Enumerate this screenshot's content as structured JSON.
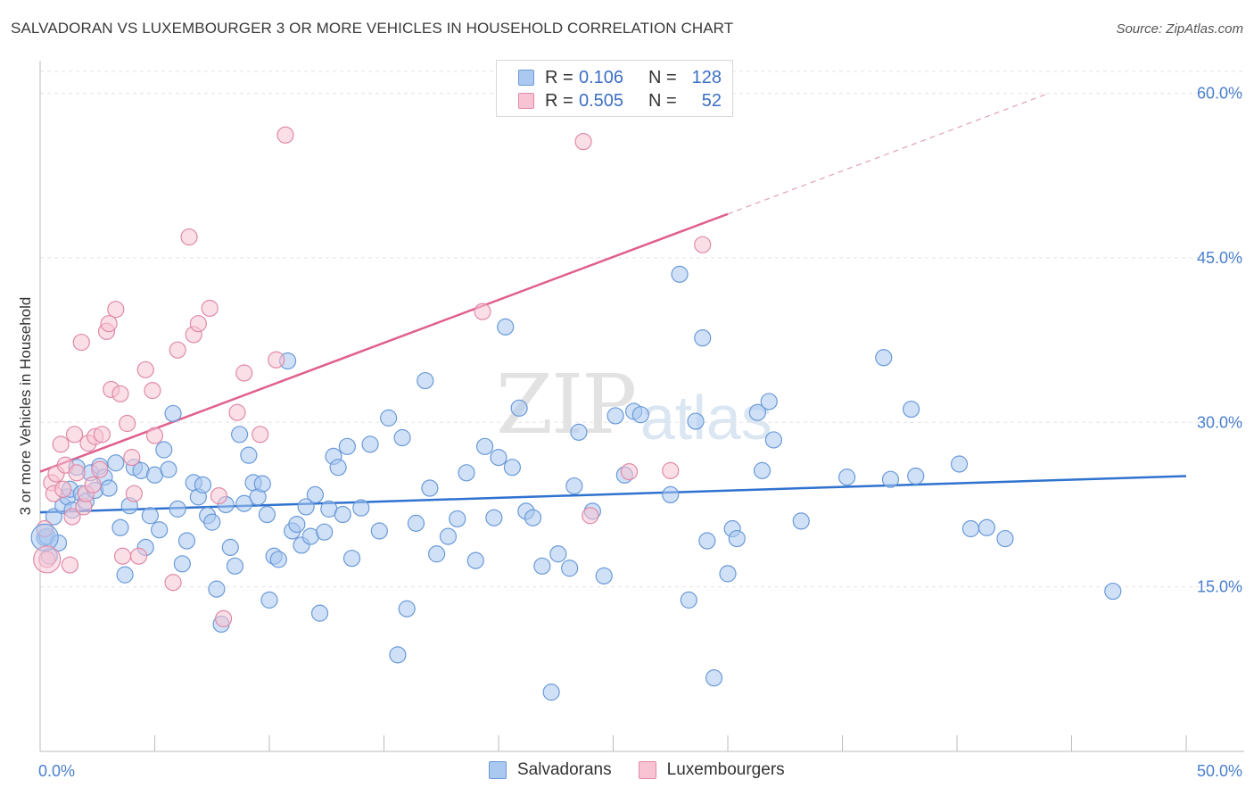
{
  "title": "SALVADORAN VS LUXEMBOURGER 3 OR MORE VEHICLES IN HOUSEHOLD CORRELATION CHART",
  "source": "Source: ZipAtlas.com",
  "watermark": {
    "zip": "ZIP",
    "atlas": "atlas"
  },
  "legend": {
    "rows": [
      {
        "r_label": "R =",
        "r_value": "0.106",
        "n_label": "N =",
        "n_value": "128",
        "color": "#aac8f0",
        "border": "#6a9ad8"
      },
      {
        "r_label": "R =",
        "r_value": "0.505",
        "n_label": "N =",
        "n_value": "52",
        "color": "#f8c4d4",
        "border": "#e08aa6"
      }
    ]
  },
  "bottom_legend": [
    {
      "label": "Salvadorans",
      "color": "#aac8f0",
      "border": "#6a9ad8"
    },
    {
      "label": "Luxembourgers",
      "color": "#f8c4d4",
      "border": "#e08aa6"
    }
  ],
  "chart_data": {
    "type": "scatter",
    "ylabel": "3 or more Vehicles in Household",
    "xlim": [
      0,
      50
    ],
    "ylim": [
      0,
      62
    ],
    "x_tick_labels": [
      "0.0%",
      "50.0%"
    ],
    "y_ticks": [
      15,
      30,
      45,
      60
    ],
    "y_tick_labels": [
      "15.0%",
      "30.0%",
      "45.0%",
      "60.0%"
    ],
    "grid": true,
    "series": [
      {
        "name": "Salvadorans",
        "color": "#6a9ad8",
        "fill": "#aac8f0",
        "trend": {
          "x0": 0,
          "y0": 21.8,
          "x1": 50,
          "y1": 25.1
        },
        "points": [
          [
            0.2,
            19.5
          ],
          [
            0.3,
            19.6
          ],
          [
            0.4,
            17.8
          ],
          [
            0.6,
            21.4
          ],
          [
            0.8,
            19.0
          ],
          [
            1.0,
            22.4
          ],
          [
            1.2,
            23.2
          ],
          [
            1.3,
            23.9
          ],
          [
            1.4,
            22.0
          ],
          [
            1.6,
            25.9
          ],
          [
            1.8,
            23.5
          ],
          [
            2.0,
            22.8
          ],
          [
            2.2,
            25.4
          ],
          [
            2.4,
            23.8
          ],
          [
            2.6,
            26.0
          ],
          [
            2.8,
            25.0
          ],
          [
            3.0,
            24.0
          ],
          [
            3.3,
            26.3
          ],
          [
            3.5,
            20.4
          ],
          [
            3.7,
            16.1
          ],
          [
            3.9,
            22.4
          ],
          [
            4.1,
            25.9
          ],
          [
            4.4,
            25.6
          ],
          [
            4.6,
            18.6
          ],
          [
            4.8,
            21.5
          ],
          [
            5.0,
            25.2
          ],
          [
            5.2,
            20.2
          ],
          [
            5.4,
            27.5
          ],
          [
            5.6,
            25.7
          ],
          [
            5.8,
            30.8
          ],
          [
            6.0,
            22.1
          ],
          [
            6.2,
            17.1
          ],
          [
            6.4,
            19.2
          ],
          [
            6.7,
            24.5
          ],
          [
            6.9,
            23.2
          ],
          [
            7.1,
            24.3
          ],
          [
            7.3,
            21.5
          ],
          [
            7.5,
            20.9
          ],
          [
            7.7,
            14.8
          ],
          [
            7.9,
            11.6
          ],
          [
            8.1,
            22.5
          ],
          [
            8.3,
            18.6
          ],
          [
            8.5,
            16.9
          ],
          [
            8.7,
            28.9
          ],
          [
            8.9,
            22.6
          ],
          [
            9.1,
            27.0
          ],
          [
            9.3,
            24.5
          ],
          [
            9.5,
            23.2
          ],
          [
            9.7,
            24.4
          ],
          [
            9.9,
            21.6
          ],
          [
            10.0,
            13.8
          ],
          [
            10.2,
            17.8
          ],
          [
            10.4,
            17.5
          ],
          [
            10.8,
            35.6
          ],
          [
            11.0,
            20.1
          ],
          [
            11.2,
            20.7
          ],
          [
            11.4,
            18.8
          ],
          [
            11.6,
            22.3
          ],
          [
            11.8,
            19.6
          ],
          [
            12.0,
            23.4
          ],
          [
            12.2,
            12.6
          ],
          [
            12.4,
            20.0
          ],
          [
            12.6,
            22.1
          ],
          [
            12.8,
            26.9
          ],
          [
            13.0,
            25.9
          ],
          [
            13.2,
            21.6
          ],
          [
            13.4,
            27.8
          ],
          [
            13.6,
            17.6
          ],
          [
            14.0,
            22.2
          ],
          [
            14.4,
            28.0
          ],
          [
            14.8,
            20.1
          ],
          [
            15.2,
            30.4
          ],
          [
            15.6,
            8.8
          ],
          [
            15.8,
            28.6
          ],
          [
            16.0,
            13.0
          ],
          [
            16.4,
            20.8
          ],
          [
            16.8,
            33.8
          ],
          [
            17.0,
            24.0
          ],
          [
            17.3,
            18.0
          ],
          [
            17.8,
            19.6
          ],
          [
            18.2,
            21.2
          ],
          [
            18.6,
            25.4
          ],
          [
            19.0,
            17.4
          ],
          [
            19.4,
            27.8
          ],
          [
            19.8,
            21.3
          ],
          [
            20.0,
            26.8
          ],
          [
            20.3,
            38.7
          ],
          [
            20.6,
            25.9
          ],
          [
            20.9,
            31.3
          ],
          [
            21.2,
            21.9
          ],
          [
            21.5,
            21.3
          ],
          [
            21.9,
            16.9
          ],
          [
            22.3,
            5.4
          ],
          [
            22.6,
            18.0
          ],
          [
            23.1,
            16.7
          ],
          [
            23.3,
            24.2
          ],
          [
            23.5,
            29.1
          ],
          [
            24.1,
            21.9
          ],
          [
            24.6,
            16.0
          ],
          [
            25.1,
            30.6
          ],
          [
            25.5,
            25.2
          ],
          [
            25.9,
            31.0
          ],
          [
            26.2,
            30.7
          ],
          [
            27.5,
            23.4
          ],
          [
            27.9,
            43.5
          ],
          [
            28.3,
            13.8
          ],
          [
            28.6,
            30.1
          ],
          [
            28.9,
            37.7
          ],
          [
            29.1,
            19.2
          ],
          [
            29.4,
            6.7
          ],
          [
            30.0,
            16.2
          ],
          [
            31.3,
            30.9
          ],
          [
            31.5,
            25.6
          ],
          [
            31.8,
            31.9
          ],
          [
            32.0,
            28.4
          ],
          [
            33.2,
            21.0
          ],
          [
            35.2,
            25.0
          ],
          [
            36.8,
            35.9
          ],
          [
            37.1,
            24.8
          ],
          [
            38.0,
            31.2
          ],
          [
            38.2,
            25.1
          ],
          [
            40.1,
            26.2
          ],
          [
            40.6,
            20.3
          ],
          [
            41.3,
            20.4
          ],
          [
            42.1,
            19.4
          ],
          [
            46.8,
            14.6
          ],
          [
            30.2,
            20.3
          ],
          [
            30.4,
            19.4
          ]
        ]
      },
      {
        "name": "Luxembourgers",
        "color": "#e08aa6",
        "fill": "#f8c4d4",
        "trend": {
          "x0": 0,
          "y0": 25.5,
          "x1": 30,
          "y1": 49.0
        },
        "trend_dashed": {
          "x0": 30,
          "y0": 49.0,
          "x1": 44,
          "y1": 60.0
        },
        "points": [
          [
            0.2,
            20.3
          ],
          [
            0.3,
            17.5
          ],
          [
            0.5,
            24.5
          ],
          [
            0.6,
            23.5
          ],
          [
            0.7,
            25.3
          ],
          [
            0.9,
            28.0
          ],
          [
            1.0,
            23.9
          ],
          [
            1.1,
            26.1
          ],
          [
            1.3,
            17.0
          ],
          [
            1.4,
            21.4
          ],
          [
            1.5,
            28.9
          ],
          [
            1.6,
            25.4
          ],
          [
            1.8,
            37.3
          ],
          [
            1.9,
            22.3
          ],
          [
            2.0,
            23.5
          ],
          [
            2.1,
            28.1
          ],
          [
            2.3,
            24.3
          ],
          [
            2.4,
            28.7
          ],
          [
            2.6,
            25.7
          ],
          [
            2.7,
            28.9
          ],
          [
            2.9,
            38.3
          ],
          [
            3.0,
            39.0
          ],
          [
            3.1,
            33.0
          ],
          [
            3.3,
            40.3
          ],
          [
            3.5,
            32.6
          ],
          [
            3.6,
            17.8
          ],
          [
            3.8,
            29.9
          ],
          [
            4.0,
            26.8
          ],
          [
            4.1,
            23.5
          ],
          [
            4.3,
            17.8
          ],
          [
            4.6,
            34.8
          ],
          [
            4.9,
            32.9
          ],
          [
            5.0,
            28.8
          ],
          [
            5.8,
            15.4
          ],
          [
            6.0,
            36.6
          ],
          [
            6.5,
            46.9
          ],
          [
            6.7,
            38.0
          ],
          [
            6.9,
            39.0
          ],
          [
            7.4,
            40.4
          ],
          [
            7.8,
            23.3
          ],
          [
            8.0,
            12.1
          ],
          [
            8.6,
            30.9
          ],
          [
            8.9,
            34.5
          ],
          [
            9.6,
            28.9
          ],
          [
            10.3,
            35.7
          ],
          [
            10.7,
            56.2
          ],
          [
            19.3,
            40.1
          ],
          [
            23.7,
            55.6
          ],
          [
            24.0,
            21.5
          ],
          [
            25.7,
            25.5
          ],
          [
            27.5,
            25.6
          ],
          [
            28.9,
            46.2
          ]
        ]
      }
    ]
  }
}
